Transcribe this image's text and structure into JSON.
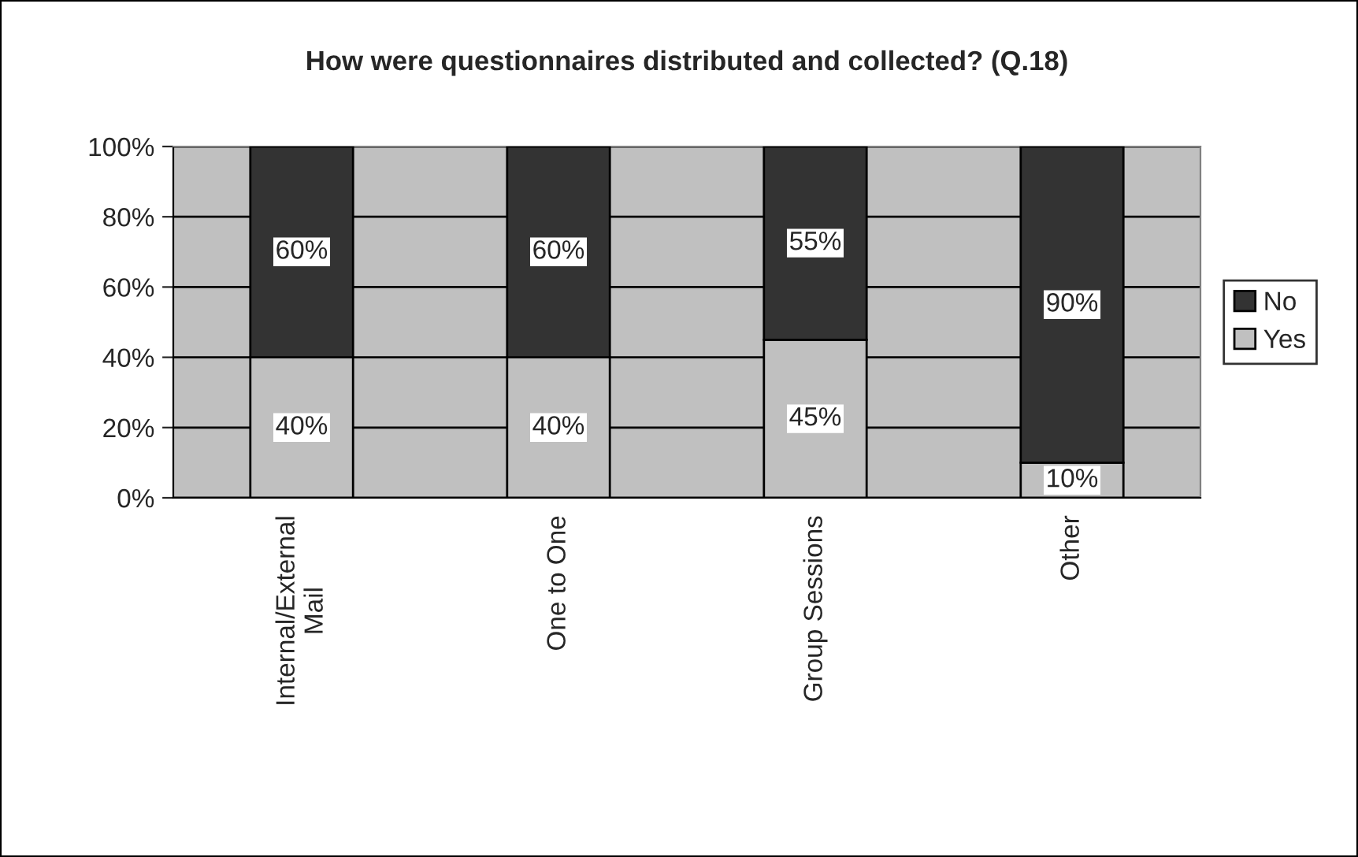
{
  "chart_data": {
    "type": "bar",
    "title": "How were questionnaires distributed and collected? (Q.18)",
    "categories": [
      "Internal/External Mail",
      "One to One",
      "Group Sessions",
      "Other"
    ],
    "stacked": true,
    "series": [
      {
        "name": "Yes",
        "color": "#c0c0c0",
        "values": [
          40,
          40,
          45,
          10
        ],
        "value_labels": [
          "40%",
          "40%",
          "45%",
          "10%"
        ]
      },
      {
        "name": "No",
        "color": "#333333",
        "values": [
          60,
          60,
          55,
          90
        ],
        "value_labels": [
          "60%",
          "60%",
          "55%",
          "90%"
        ]
      }
    ],
    "ylim": [
      0,
      100
    ],
    "yticks": [
      {
        "value": 0,
        "label": "0%"
      },
      {
        "value": 20,
        "label": "20%"
      },
      {
        "value": 40,
        "label": "40%"
      },
      {
        "value": 60,
        "label": "60%"
      },
      {
        "value": 80,
        "label": "80%"
      },
      {
        "value": 100,
        "label": "100%"
      }
    ],
    "grid": "y",
    "legend": "right"
  }
}
